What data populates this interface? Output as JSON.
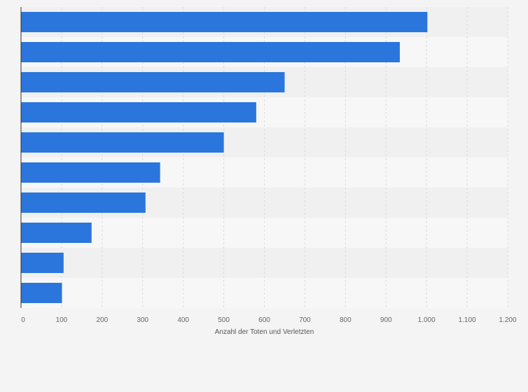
{
  "chart_data": {
    "type": "bar",
    "orientation": "horizontal",
    "title": "",
    "xlabel": "Anzahl der Toten und Verletzten",
    "ylabel": "",
    "categories": [
      "",
      "",
      "",
      "",
      "",
      "",
      "",
      "",
      "",
      ""
    ],
    "values": [
      1002,
      934,
      650,
      580,
      500,
      343,
      307,
      174,
      105,
      101
    ],
    "xlim": [
      0,
      1200
    ],
    "ticks": [
      0,
      100,
      200,
      300,
      400,
      500,
      600,
      700,
      800,
      900,
      1000,
      1100,
      1200
    ],
    "tick_labels": [
      "0",
      "100",
      "200",
      "300",
      "400",
      "500",
      "600",
      "700",
      "800",
      "900",
      "1.000",
      "1.100",
      "1.200"
    ],
    "grid": true,
    "legend": "none",
    "colors": {
      "bar": "#2a76dd",
      "band_dark": "#f0f0f0",
      "band_light": "#f7f7f7",
      "background": "#f4f4f4",
      "grid": "#dcdcdc",
      "axis": "#333333"
    }
  }
}
